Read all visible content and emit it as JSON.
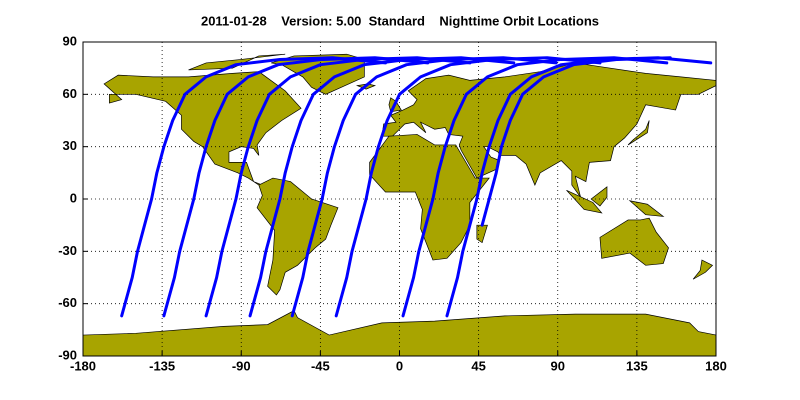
{
  "chart_data": {
    "type": "line",
    "title": "2011-01-28    Version: 5.00  Standard    Nighttime Orbit Locations",
    "xlim": [
      -180,
      180
    ],
    "ylim": [
      -90,
      90
    ],
    "xticks": [
      -180,
      -135,
      -90,
      -45,
      0,
      45,
      90,
      135,
      180
    ],
    "yticks": [
      -90,
      -60,
      -30,
      0,
      30,
      60,
      90
    ],
    "grid": true,
    "series": [
      {
        "color": "#0000ff",
        "x": [
          -158,
          -152,
          -149,
          -145,
          -141,
          -138,
          -134,
          -129,
          -122,
          -110,
          -93,
          -68,
          -38,
          -8
        ],
        "values": [
          -67,
          -45,
          -30,
          -15,
          0,
          15,
          30,
          45,
          60,
          70,
          77,
          80,
          81,
          78
        ]
      },
      {
        "color": "#0000ff",
        "x": [
          -134,
          -128,
          -125,
          -121,
          -117,
          -114,
          -110,
          -105,
          -98,
          -86,
          -69,
          -44,
          -14,
          16
        ],
        "values": [
          -67,
          -45,
          -30,
          -15,
          0,
          15,
          30,
          45,
          60,
          70,
          77,
          80,
          81,
          78
        ]
      },
      {
        "color": "#0000ff",
        "x": [
          -110,
          -104,
          -101,
          -97,
          -93,
          -90,
          -86,
          -81,
          -74,
          -62,
          -45,
          -20,
          10,
          40
        ],
        "values": [
          -67,
          -45,
          -30,
          -15,
          0,
          15,
          30,
          45,
          60,
          70,
          77,
          80,
          81,
          78
        ]
      },
      {
        "color": "#0000ff",
        "x": [
          -85,
          -79,
          -76,
          -72,
          -68,
          -65,
          -61,
          -56,
          -49,
          -37,
          -20,
          5,
          35,
          65
        ],
        "values": [
          -67,
          -45,
          -30,
          -15,
          0,
          15,
          30,
          45,
          60,
          70,
          77,
          80,
          81,
          78
        ]
      },
      {
        "color": "#0000ff",
        "x": [
          -61,
          -55,
          -52,
          -48,
          -44,
          -41,
          -37,
          -32,
          -25,
          -13,
          4,
          29,
          59,
          89
        ],
        "values": [
          -67,
          -45,
          -30,
          -15,
          0,
          15,
          30,
          45,
          60,
          70,
          77,
          80,
          81,
          78
        ]
      },
      {
        "color": "#0000ff",
        "x": [
          -36,
          -30,
          -27,
          -23,
          -19,
          -16,
          -12,
          -7,
          0,
          12,
          29,
          54,
          84,
          114
        ],
        "values": [
          -67,
          -45,
          -30,
          -15,
          0,
          15,
          30,
          45,
          60,
          70,
          77,
          80,
          81,
          78
        ]
      },
      {
        "color": "#0000ff",
        "x": [
          2,
          8,
          11,
          15,
          19,
          22,
          26,
          31,
          38,
          50,
          67,
          92,
          122,
          152
        ],
        "values": [
          -67,
          -45,
          -30,
          -15,
          0,
          15,
          30,
          45,
          60,
          70,
          77,
          80,
          81,
          78
        ]
      },
      {
        "color": "#0000ff",
        "x": [
          27,
          33,
          36,
          40,
          44,
          47,
          51,
          56,
          63,
          75,
          92,
          117,
          147,
          177
        ],
        "values": [
          -67,
          -45,
          -30,
          -15,
          0,
          15,
          30,
          45,
          60,
          70,
          77,
          80,
          81,
          78
        ]
      },
      {
        "color": "#0000ff",
        "x": [
          47,
          51,
          55,
          58,
          63,
          70,
          82,
          99,
          124,
          154
        ],
        "values": [
          -15,
          0,
          15,
          30,
          45,
          60,
          70,
          77,
          80,
          81
        ]
      }
    ]
  }
}
